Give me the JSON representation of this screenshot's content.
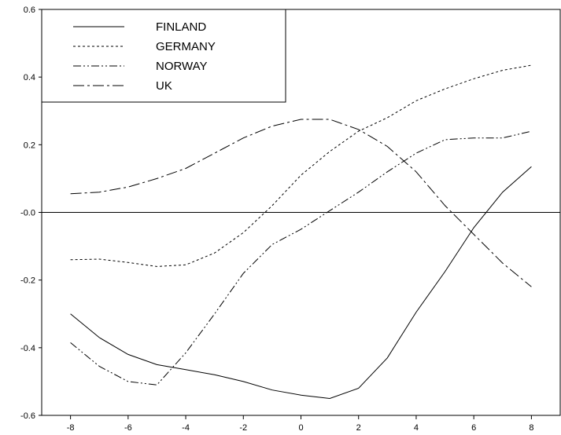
{
  "chart_data": {
    "type": "line",
    "title": "",
    "xlabel": "",
    "ylabel": "",
    "x": [
      -8,
      -7,
      -6,
      -5,
      -4,
      -3,
      -2,
      -1,
      0,
      1,
      2,
      3,
      4,
      5,
      6,
      7,
      8
    ],
    "xlim": [
      -9,
      9
    ],
    "ylim": [
      -0.6,
      0.6
    ],
    "xticks": [
      -8,
      -6,
      -4,
      -2,
      0,
      2,
      4,
      6,
      8
    ],
    "xtick_labels": [
      "-8",
      "-6",
      "-4",
      "-2",
      "0",
      "2",
      "4",
      "6",
      "8"
    ],
    "yticks": [
      -0.6,
      -0.4,
      -0.2,
      0.0,
      0.2,
      0.4,
      0.6
    ],
    "ytick_labels": [
      "-0.6",
      "-0.4",
      "-0.2",
      "-0.0",
      "0.2",
      "0.4",
      "0.6"
    ],
    "zero_line": true,
    "grid": false,
    "legend_position": "top-left",
    "series": [
      {
        "name": "FINLAND",
        "style": "solid",
        "values": [
          -0.3,
          -0.37,
          -0.42,
          -0.45,
          -0.465,
          -0.48,
          -0.5,
          -0.525,
          -0.54,
          -0.55,
          -0.52,
          -0.43,
          -0.295,
          -0.175,
          -0.045,
          0.06,
          0.135
        ]
      },
      {
        "name": "GERMANY",
        "style": "dotted",
        "values": [
          -0.14,
          -0.138,
          -0.148,
          -0.16,
          -0.155,
          -0.12,
          -0.06,
          0.02,
          0.11,
          0.18,
          0.24,
          0.28,
          0.33,
          0.365,
          0.395,
          0.42,
          0.435
        ]
      },
      {
        "name": "NORWAY",
        "style": "dash-dot-dot",
        "values": [
          -0.385,
          -0.455,
          -0.5,
          -0.51,
          -0.415,
          -0.3,
          -0.18,
          -0.095,
          -0.05,
          0.005,
          0.06,
          0.12,
          0.175,
          0.215,
          0.22,
          0.22,
          0.24
        ]
      },
      {
        "name": "UK",
        "style": "dash-dot",
        "values": [
          0.055,
          0.06,
          0.075,
          0.1,
          0.13,
          0.175,
          0.22,
          0.255,
          0.275,
          0.275,
          0.245,
          0.195,
          0.12,
          0.02,
          -0.065,
          -0.15,
          -0.22
        ]
      }
    ]
  }
}
